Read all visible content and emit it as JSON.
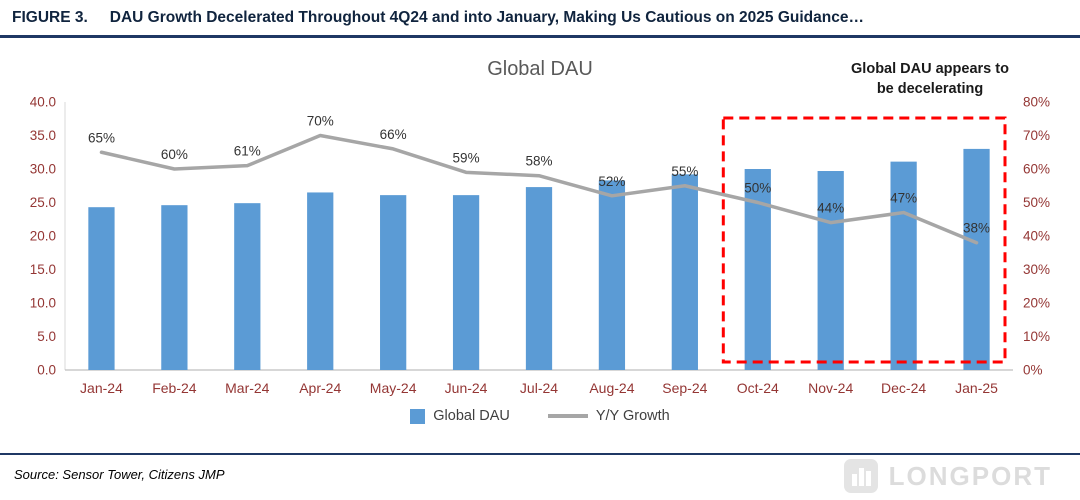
{
  "header": {
    "figure_label": "FIGURE 3.",
    "title": "DAU Growth Decelerated Throughout 4Q24 and into January, Making Us Cautious on 2025 Guidance…"
  },
  "chart_data": {
    "type": "bar+line combo",
    "title": "Global DAU",
    "annotation": "Global DAU appears to\nbe decelerating",
    "categories": [
      "Jan-24",
      "Feb-24",
      "Mar-24",
      "Apr-24",
      "May-24",
      "Jun-24",
      "Jul-24",
      "Aug-24",
      "Sep-24",
      "Oct-24",
      "Nov-24",
      "Dec-24",
      "Jan-25"
    ],
    "series": [
      {
        "name": "Global DAU",
        "type": "bar",
        "axis": "left",
        "color": "#5B9BD5",
        "values": [
          24.3,
          24.6,
          24.9,
          26.5,
          26.1,
          26.1,
          27.3,
          28.3,
          29.2,
          30.0,
          29.7,
          31.1,
          33.0
        ]
      },
      {
        "name": "Y/Y Growth",
        "type": "line",
        "axis": "right",
        "color": "#A6A6A6",
        "values": [
          65,
          60,
          61,
          70,
          66,
          59,
          58,
          52,
          55,
          50,
          44,
          47,
          38
        ],
        "labels": [
          "65%",
          "60%",
          "61%",
          "70%",
          "66%",
          "59%",
          "58%",
          "52%",
          "55%",
          "50%",
          "44%",
          "47%",
          "38%"
        ]
      }
    ],
    "left_axis": {
      "min": 0,
      "max": 40,
      "step": 5,
      "decimals": 1
    },
    "right_axis": {
      "min": 0,
      "max": 80,
      "step": 10,
      "suffix": "%"
    },
    "grid": false,
    "legend_position": "bottom",
    "highlight_box": {
      "from_category": "Oct-24",
      "to_category": "Jan-25",
      "color": "#FF0000",
      "style": "dashed"
    }
  },
  "footer": {
    "source": "Source: Sensor Tower, Citizens JMP",
    "watermark": "LONGPORT"
  },
  "colors": {
    "header_rule": "#1F3864",
    "axis_labels": "#943634",
    "bar": "#5B9BD5",
    "line": "#A6A6A6",
    "highlight": "#FF0000"
  }
}
